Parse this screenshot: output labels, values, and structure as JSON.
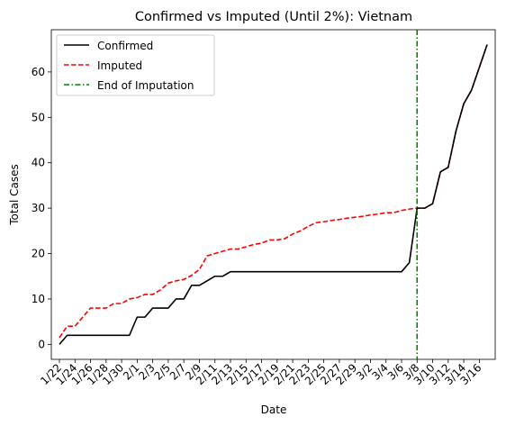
{
  "chart_data": {
    "type": "line",
    "title": "Confirmed vs Imputed (Until 2%): Vietnam",
    "xlabel": "Date",
    "ylabel": "Total Cases",
    "x": [
      "1/22",
      "1/23",
      "1/24",
      "1/25",
      "1/26",
      "1/27",
      "1/28",
      "1/29",
      "1/30",
      "1/31",
      "2/1",
      "2/2",
      "2/3",
      "2/4",
      "2/5",
      "2/6",
      "2/7",
      "2/8",
      "2/9",
      "2/10",
      "2/11",
      "2/12",
      "2/13",
      "2/14",
      "2/15",
      "2/16",
      "2/17",
      "2/18",
      "2/19",
      "2/20",
      "2/21",
      "2/22",
      "2/23",
      "2/24",
      "2/25",
      "2/26",
      "2/27",
      "2/28",
      "2/29",
      "3/1",
      "3/2",
      "3/3",
      "3/4",
      "3/5",
      "3/6",
      "3/7",
      "3/8",
      "3/9",
      "3/10",
      "3/11",
      "3/12",
      "3/13",
      "3/14",
      "3/15",
      "3/16",
      "3/17"
    ],
    "xtick_labels": [
      "1/22",
      "1/24",
      "1/26",
      "1/28",
      "1/30",
      "2/1",
      "2/3",
      "2/5",
      "2/7",
      "2/9",
      "2/11",
      "2/13",
      "2/15",
      "2/17",
      "2/19",
      "2/21",
      "2/23",
      "2/25",
      "2/27",
      "2/29",
      "3/2",
      "3/4",
      "3/6",
      "3/8",
      "3/10",
      "3/12",
      "3/14",
      "3/16"
    ],
    "ylim": [
      -3.3,
      69.3
    ],
    "yticks": [
      0,
      10,
      20,
      30,
      40,
      50,
      60
    ],
    "series": [
      {
        "name": "Confirmed",
        "color": "#000000",
        "style": "solid",
        "values": [
          0,
          2,
          2,
          2,
          2,
          2,
          2,
          2,
          2,
          2,
          6,
          6,
          8,
          8,
          8,
          10,
          10,
          13,
          13,
          14,
          15,
          15,
          16,
          16,
          16,
          16,
          16,
          16,
          16,
          16,
          16,
          16,
          16,
          16,
          16,
          16,
          16,
          16,
          16,
          16,
          16,
          16,
          16,
          16,
          16,
          18,
          30,
          30,
          31,
          38,
          39,
          47,
          53,
          56,
          61,
          66
        ]
      },
      {
        "name": "Imputed",
        "color": "#ff0000",
        "style": "dashed",
        "values": [
          1.5,
          4,
          4,
          6,
          8,
          8,
          8,
          9,
          9,
          10,
          10.3,
          11,
          11,
          12,
          13.5,
          14,
          14.3,
          15.2,
          16.5,
          19.5,
          20,
          20.5,
          21,
          21,
          21.5,
          22,
          22.3,
          23,
          23,
          23.3,
          24.3,
          25,
          26,
          26.8,
          27,
          27.3,
          27.5,
          27.8,
          28,
          28.2,
          28.5,
          28.7,
          29,
          29,
          29.5,
          29.8,
          30,
          30,
          31,
          38,
          39,
          47,
          53,
          56,
          61,
          66
        ]
      }
    ],
    "vline": {
      "name": "End of Imputation",
      "color": "#008000",
      "style": "dashdot",
      "x_index": 46
    },
    "grid": false,
    "legend_position": "upper-left"
  }
}
